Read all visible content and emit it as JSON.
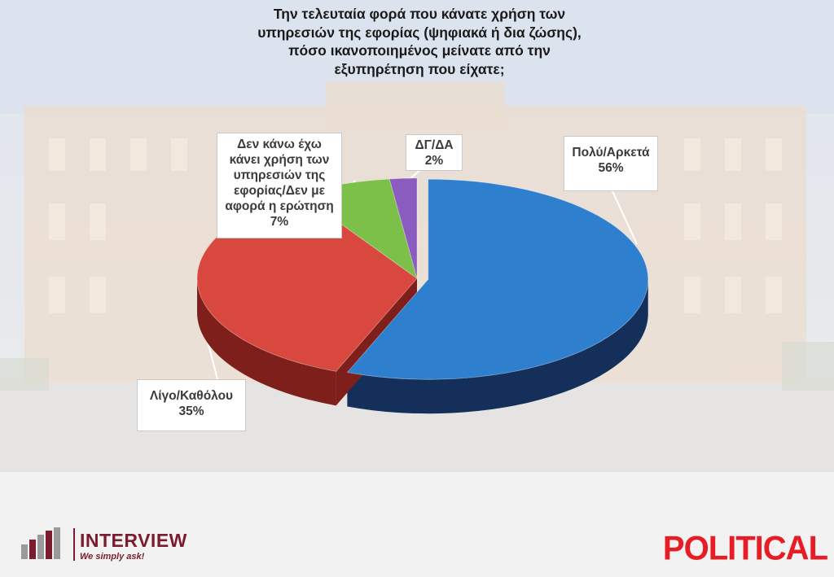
{
  "title_lines": [
    "Την τελευταία φορά που κάνατε χρήση των",
    "υπηρεσιών της εφορίας (ψηφιακά ή δια ζώσης),",
    "πόσο ικανοποιημένος μείνατε από την",
    "εξυπηρέτηση που είχατε;"
  ],
  "chart_data": {
    "type": "pie",
    "style": "3d-exploded",
    "slices": [
      {
        "label": "Πολύ/Αρκετά",
        "value": 56,
        "pct_label": "56%",
        "color": "#2f7fcf",
        "side_color": "#14305a"
      },
      {
        "label": "Λίγο/Καθόλου",
        "value": 35,
        "pct_label": "35%",
        "color": "#d9483f",
        "side_color": "#7e1f1b"
      },
      {
        "label": "Δεν κάνω έχω κάνει χρήση των υπηρεσιών της εφορίας/Δεν με αφορά η ερώτηση",
        "value": 7,
        "pct_label": "7%",
        "color": "#7cc04a",
        "side_color": "#3f6e22"
      },
      {
        "label": "ΔΓ/ΔΑ",
        "value": 2,
        "pct_label": "2%",
        "color": "#8a5cc0",
        "side_color": "#4a2c70"
      }
    ],
    "callout_lines": {
      "polu": [
        "Πολύ/Αρκετά"
      ],
      "ligo": [
        "Λίγο/Καθόλου"
      ],
      "den": [
        "Δεν κάνω έχω",
        "κάνει χρήση των",
        "υπηρεσιών της",
        "εφορίας/Δεν με",
        "αφορά η ερώτηση"
      ],
      "dg": [
        "ΔΓ/ΔΑ"
      ]
    }
  },
  "logos": {
    "interview_name": "INTERVIEW",
    "interview_tagline": "We simply ask!",
    "political": "POLITICAL"
  }
}
